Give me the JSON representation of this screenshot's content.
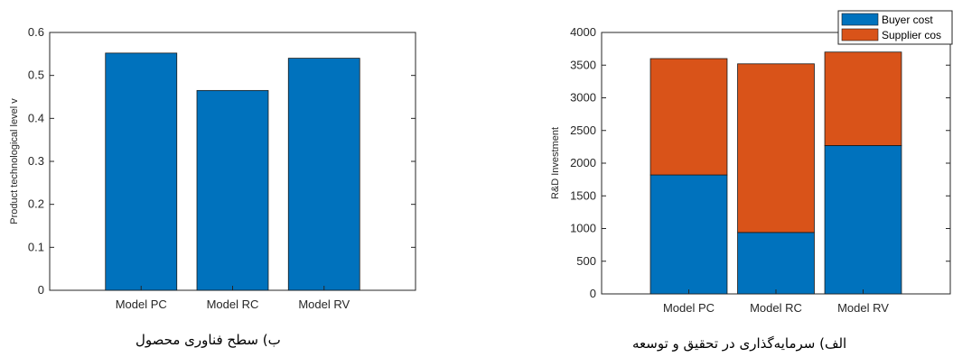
{
  "chart_data": [
    {
      "type": "bar",
      "categories": [
        "Model PC",
        "Model RC",
        "Model RV"
      ],
      "values": [
        0.552,
        0.465,
        0.54
      ],
      "ylabel": "Product technological level v",
      "ylim": [
        0,
        0.6
      ],
      "yticks": [
        0,
        0.1,
        0.2,
        0.3,
        0.4,
        0.5,
        0.6
      ],
      "color": "#0072bd",
      "caption": "ب) سطح فناوری محصول"
    },
    {
      "type": "bar",
      "stacked": true,
      "categories": [
        "Model PC",
        "Model RC",
        "Model RV"
      ],
      "series": [
        {
          "name": "Buyer cost",
          "values": [
            1820,
            940,
            2270
          ],
          "color": "#0072bd"
        },
        {
          "name": "Supplier cos",
          "values": [
            1780,
            2580,
            1430
          ],
          "color": "#d95319"
        }
      ],
      "ylabel": "R&D Investment",
      "ylim": [
        0,
        4000
      ],
      "yticks": [
        0,
        500,
        1000,
        1500,
        2000,
        2500,
        3000,
        3500,
        4000
      ],
      "legend": "top-right",
      "caption": "الف) سرمایه‌گذاری در تحقیق و توسعه"
    }
  ]
}
